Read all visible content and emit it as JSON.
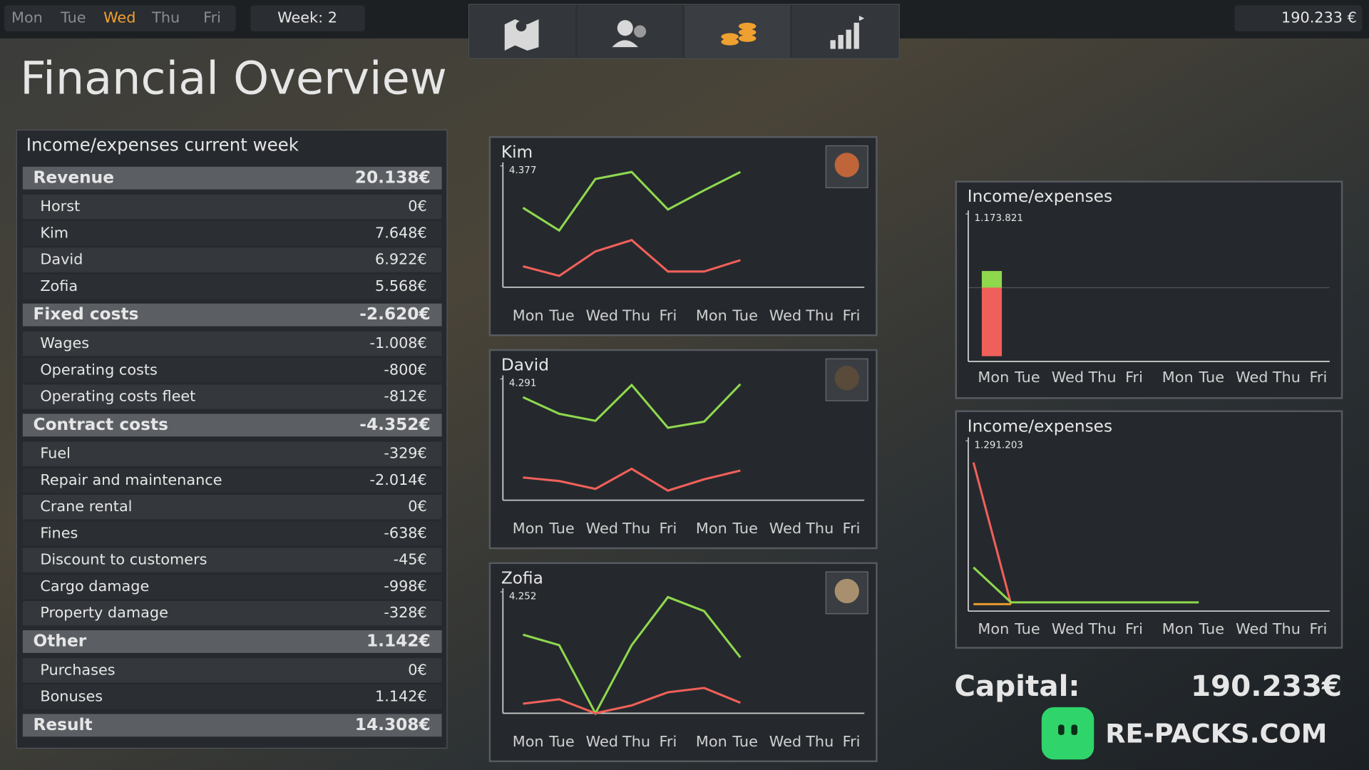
{
  "top_bar": {
    "days": [
      "Mon",
      "Tue",
      "Wed",
      "Thu",
      "Fri"
    ],
    "active_day_index": 2,
    "week": "Week: 2",
    "money": "190.233 €"
  },
  "title": "Financial Overview",
  "table": {
    "title": "Income/expenses current week",
    "sections": [
      {
        "label": "Revenue",
        "value": "20.138€",
        "rows": [
          [
            "Horst",
            "0€"
          ],
          [
            "Kim",
            "7.648€"
          ],
          [
            "David",
            "6.922€"
          ],
          [
            "Zofia",
            "5.568€"
          ]
        ]
      },
      {
        "label": "Fixed costs",
        "value": "-2.620€",
        "rows": [
          [
            "Wages",
            "-1.008€"
          ],
          [
            "Operating costs",
            "-800€"
          ],
          [
            "Operating costs fleet",
            "-812€"
          ]
        ]
      },
      {
        "label": "Contract costs",
        "value": "-4.352€",
        "rows": [
          [
            "Fuel",
            "-329€"
          ],
          [
            "Repair and maintenance",
            "-2.014€"
          ],
          [
            "Crane rental",
            "0€"
          ],
          [
            "Fines",
            "-638€"
          ],
          [
            "Discount to customers",
            "-45€"
          ],
          [
            "Cargo damage",
            "-998€"
          ],
          [
            "Property damage",
            "-328€"
          ]
        ]
      },
      {
        "label": "Other",
        "value": "1.142€",
        "rows": [
          [
            "Purchases",
            "0€"
          ],
          [
            "Bonuses",
            "1.142€"
          ]
        ]
      },
      {
        "label": "Result",
        "value": "14.308€",
        "rows": []
      }
    ]
  },
  "chart_data": [
    {
      "type": "line",
      "title": "Kim",
      "categories": [
        "Mon",
        "Tue",
        "Wed",
        "Thu",
        "Fri",
        "Mon",
        "Tue",
        "Wed",
        "Thu",
        "Fri"
      ],
      "ylim": [
        0,
        4377
      ],
      "yticks": [
        {
          "value": 4377,
          "label": "4.377"
        }
      ],
      "series": [
        {
          "color": "#8fd84e",
          "values": [
            2866,
            2047,
            3905,
            4157,
            2803,
            3495,
            4157,
            null,
            null,
            null
          ]
        },
        {
          "color": "#f0605a",
          "values": [
            756,
            409,
            1291,
            1700,
            567,
            567,
            976,
            null,
            null,
            null
          ]
        }
      ]
    },
    {
      "type": "line",
      "title": "David",
      "categories": [
        "Mon",
        "Tue",
        "Wed",
        "Thu",
        "Fri",
        "Mon",
        "Tue",
        "Wed",
        "Thu",
        "Fri"
      ],
      "ylim": [
        0,
        4291
      ],
      "yticks": [
        {
          "value": 4291,
          "label": "4.291"
        }
      ],
      "series": [
        {
          "color": "#8fd84e",
          "values": [
            3643,
            3056,
            2809,
            4075,
            2562,
            2778,
            4106,
            null,
            null,
            null
          ]
        },
        {
          "color": "#f0605a",
          "values": [
            803,
            679,
            401,
            1111,
            340,
            741,
            1050,
            null,
            null,
            null
          ]
        }
      ]
    },
    {
      "type": "line",
      "title": "Zofia",
      "categories": [
        "Mon",
        "Tue",
        "Wed",
        "Thu",
        "Fri",
        "Mon",
        "Tue",
        "Wed",
        "Thu",
        "Fri"
      ],
      "ylim": [
        0,
        4252
      ],
      "yticks": [
        {
          "value": 4252,
          "label": "4.252"
        }
      ],
      "series": [
        {
          "color": "#8fd84e",
          "values": [
            2753,
            2386,
            0,
            2386,
            4069,
            3579,
            1958,
            null,
            null,
            null
          ]
        },
        {
          "color": "#f0605a",
          "values": [
            336,
            489,
            0,
            275,
            734,
            887,
            367,
            null,
            null,
            null
          ]
        }
      ]
    },
    {
      "type": "bar",
      "title": "Income/expenses",
      "categories": [
        "Mon",
        "Tue",
        "Wed",
        "Thu",
        "Fri",
        "Mon",
        "Tue",
        "Wed",
        "Thu",
        "Fri"
      ],
      "ylim": [
        -1173821,
        1173821
      ],
      "yticks": [
        {
          "value": 1173821,
          "label": "1.173.821"
        }
      ],
      "series": [
        {
          "color": "#8fd84e",
          "values": [
            265000,
            0,
            0,
            0,
            0,
            0,
            0,
            0,
            0,
            null
          ]
        },
        {
          "color": "#f0605a",
          "values": [
            -1090000,
            0,
            0,
            0,
            0,
            0,
            0,
            0,
            0,
            null
          ]
        }
      ]
    },
    {
      "type": "line",
      "title": "Income/expenses",
      "categories": [
        "Mon",
        "Tue",
        "Wed",
        "Thu",
        "Fri",
        "Mon",
        "Tue",
        "Wed",
        "Thu",
        "Fri"
      ],
      "ylim": [
        0,
        1291203
      ],
      "yticks": [
        {
          "value": 1291203,
          "label": "1.291.203"
        }
      ],
      "series": [
        {
          "color": "#f0605a",
          "values": [
            1120000,
            0,
            null,
            null,
            null,
            null,
            null,
            null,
            null,
            null
          ]
        },
        {
          "color": "#8fd84e",
          "values": [
            290000,
            14000,
            14000,
            14000,
            14000,
            14000,
            14000,
            null,
            null,
            null
          ]
        },
        {
          "color": "#e89b2c",
          "values": [
            0,
            0,
            null,
            null,
            null,
            null,
            null,
            null,
            null,
            null
          ]
        }
      ]
    }
  ],
  "capital": {
    "label": "Capital:",
    "value": "190.233€"
  },
  "watermark": "RE-PACKS.COM"
}
